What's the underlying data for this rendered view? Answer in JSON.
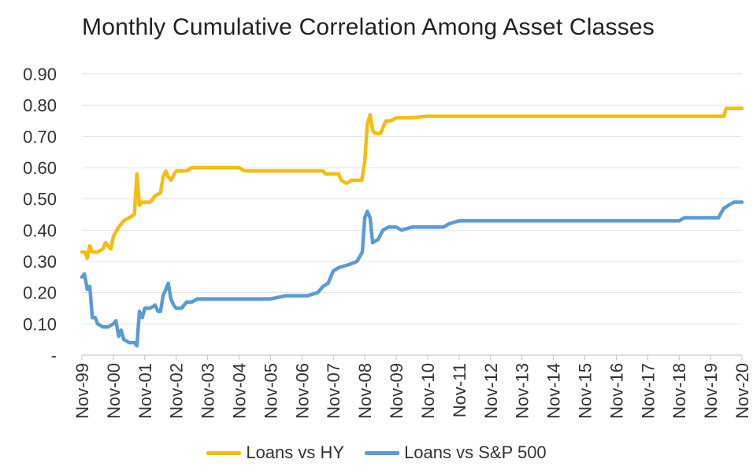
{
  "chart_data": {
    "type": "line",
    "title": "Monthly Cumulative Correlation Among Asset Classes",
    "xlabel": "",
    "ylabel": "",
    "ylim": [
      0,
      0.9
    ],
    "y_ticks": [
      "-",
      "0.10",
      "0.20",
      "0.30",
      "0.40",
      "0.50",
      "0.60",
      "0.70",
      "0.80",
      "0.90"
    ],
    "x_ticks": [
      "Nov-99",
      "Nov-00",
      "Nov-01",
      "Nov-02",
      "Nov-03",
      "Nov-04",
      "Nov-05",
      "Nov-06",
      "Nov-07",
      "Nov-08",
      "Nov-09",
      "Nov-10",
      "Nov-11",
      "Nov-12",
      "Nov-13",
      "Nov-14",
      "Nov-15",
      "Nov-16",
      "Nov-17",
      "Nov-18",
      "Nov-19",
      "Nov-20"
    ],
    "grid": true,
    "legend_position": "bottom",
    "series": [
      {
        "name": "Loans vs HY",
        "color": "#F5BD0F",
        "points": [
          [
            0.0,
            0.33
          ],
          [
            0.1,
            0.33
          ],
          [
            0.17,
            0.31
          ],
          [
            0.25,
            0.35
          ],
          [
            0.33,
            0.33
          ],
          [
            0.5,
            0.33
          ],
          [
            0.67,
            0.34
          ],
          [
            0.75,
            0.36
          ],
          [
            0.83,
            0.35
          ],
          [
            0.92,
            0.34
          ],
          [
            1.0,
            0.38
          ],
          [
            1.17,
            0.41
          ],
          [
            1.33,
            0.43
          ],
          [
            1.5,
            0.44
          ],
          [
            1.67,
            0.45
          ],
          [
            1.75,
            0.58
          ],
          [
            1.83,
            0.48
          ],
          [
            1.92,
            0.49
          ],
          [
            2.0,
            0.49
          ],
          [
            2.17,
            0.49
          ],
          [
            2.33,
            0.51
          ],
          [
            2.5,
            0.52
          ],
          [
            2.58,
            0.57
          ],
          [
            2.67,
            0.59
          ],
          [
            2.75,
            0.57
          ],
          [
            2.83,
            0.56
          ],
          [
            3.0,
            0.59
          ],
          [
            3.33,
            0.59
          ],
          [
            3.5,
            0.6
          ],
          [
            3.67,
            0.6
          ],
          [
            4.0,
            0.6
          ],
          [
            4.33,
            0.6
          ],
          [
            4.5,
            0.6
          ],
          [
            4.67,
            0.6
          ],
          [
            5.0,
            0.6
          ],
          [
            5.17,
            0.59
          ],
          [
            5.5,
            0.59
          ],
          [
            6.0,
            0.59
          ],
          [
            6.5,
            0.59
          ],
          [
            7.0,
            0.59
          ],
          [
            7.5,
            0.59
          ],
          [
            7.67,
            0.59
          ],
          [
            7.75,
            0.58
          ],
          [
            8.0,
            0.58
          ],
          [
            8.17,
            0.58
          ],
          [
            8.25,
            0.56
          ],
          [
            8.42,
            0.55
          ],
          [
            8.58,
            0.56
          ],
          [
            8.75,
            0.56
          ],
          [
            8.9,
            0.56
          ],
          [
            9.0,
            0.62
          ],
          [
            9.08,
            0.74
          ],
          [
            9.17,
            0.77
          ],
          [
            9.25,
            0.72
          ],
          [
            9.33,
            0.71
          ],
          [
            9.5,
            0.71
          ],
          [
            9.67,
            0.75
          ],
          [
            9.83,
            0.75
          ],
          [
            10.0,
            0.76
          ],
          [
            10.5,
            0.76
          ],
          [
            11.0,
            0.765
          ],
          [
            11.5,
            0.765
          ],
          [
            12.0,
            0.765
          ],
          [
            13.0,
            0.765
          ],
          [
            14.0,
            0.765
          ],
          [
            15.0,
            0.765
          ],
          [
            16.0,
            0.765
          ],
          [
            17.0,
            0.765
          ],
          [
            18.0,
            0.765
          ],
          [
            19.0,
            0.765
          ],
          [
            19.5,
            0.765
          ],
          [
            20.0,
            0.765
          ],
          [
            20.42,
            0.765
          ],
          [
            20.5,
            0.79
          ],
          [
            20.75,
            0.79
          ],
          [
            21.0,
            0.79
          ]
        ]
      },
      {
        "name": "Loans vs S&P 500",
        "color": "#5B9BD5",
        "points": [
          [
            0.0,
            0.25
          ],
          [
            0.08,
            0.26
          ],
          [
            0.17,
            0.21
          ],
          [
            0.25,
            0.22
          ],
          [
            0.33,
            0.12
          ],
          [
            0.42,
            0.12
          ],
          [
            0.5,
            0.1
          ],
          [
            0.67,
            0.09
          ],
          [
            0.83,
            0.09
          ],
          [
            1.0,
            0.1
          ],
          [
            1.08,
            0.11
          ],
          [
            1.17,
            0.06
          ],
          [
            1.25,
            0.08
          ],
          [
            1.33,
            0.05
          ],
          [
            1.5,
            0.04
          ],
          [
            1.67,
            0.04
          ],
          [
            1.75,
            0.03
          ],
          [
            1.83,
            0.14
          ],
          [
            1.92,
            0.12
          ],
          [
            2.0,
            0.15
          ],
          [
            2.17,
            0.15
          ],
          [
            2.33,
            0.16
          ],
          [
            2.42,
            0.14
          ],
          [
            2.5,
            0.14
          ],
          [
            2.58,
            0.19
          ],
          [
            2.67,
            0.21
          ],
          [
            2.75,
            0.23
          ],
          [
            2.83,
            0.18
          ],
          [
            2.92,
            0.16
          ],
          [
            3.0,
            0.15
          ],
          [
            3.17,
            0.15
          ],
          [
            3.33,
            0.17
          ],
          [
            3.5,
            0.17
          ],
          [
            3.67,
            0.18
          ],
          [
            4.0,
            0.18
          ],
          [
            4.5,
            0.18
          ],
          [
            5.0,
            0.18
          ],
          [
            5.5,
            0.18
          ],
          [
            5.67,
            0.18
          ],
          [
            6.0,
            0.18
          ],
          [
            6.5,
            0.19
          ],
          [
            7.0,
            0.19
          ],
          [
            7.17,
            0.19
          ],
          [
            7.5,
            0.2
          ],
          [
            7.67,
            0.22
          ],
          [
            7.83,
            0.23
          ],
          [
            8.0,
            0.27
          ],
          [
            8.17,
            0.28
          ],
          [
            8.5,
            0.29
          ],
          [
            8.75,
            0.3
          ],
          [
            8.92,
            0.33
          ],
          [
            9.0,
            0.44
          ],
          [
            9.08,
            0.46
          ],
          [
            9.17,
            0.44
          ],
          [
            9.25,
            0.36
          ],
          [
            9.42,
            0.37
          ],
          [
            9.58,
            0.4
          ],
          [
            9.75,
            0.41
          ],
          [
            10.0,
            0.41
          ],
          [
            10.17,
            0.4
          ],
          [
            10.5,
            0.41
          ],
          [
            11.0,
            0.41
          ],
          [
            11.5,
            0.41
          ],
          [
            11.67,
            0.42
          ],
          [
            12.0,
            0.43
          ],
          [
            12.5,
            0.43
          ],
          [
            13.0,
            0.43
          ],
          [
            14.0,
            0.43
          ],
          [
            15.0,
            0.43
          ],
          [
            15.5,
            0.43
          ],
          [
            16.0,
            0.43
          ],
          [
            16.5,
            0.43
          ],
          [
            17.0,
            0.43
          ],
          [
            17.5,
            0.43
          ],
          [
            18.0,
            0.43
          ],
          [
            18.5,
            0.43
          ],
          [
            19.0,
            0.43
          ],
          [
            19.17,
            0.44
          ],
          [
            19.5,
            0.44
          ],
          [
            20.0,
            0.44
          ],
          [
            20.25,
            0.44
          ],
          [
            20.42,
            0.47
          ],
          [
            20.58,
            0.48
          ],
          [
            20.75,
            0.49
          ],
          [
            21.0,
            0.49
          ]
        ]
      }
    ]
  }
}
